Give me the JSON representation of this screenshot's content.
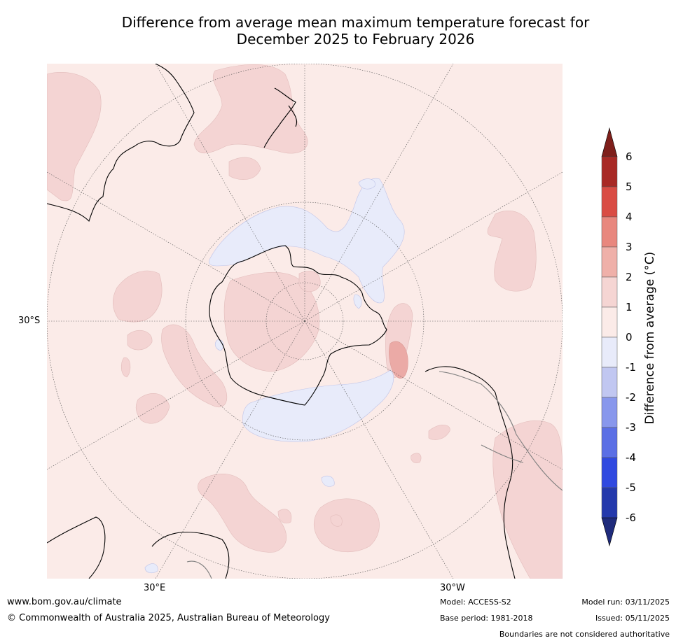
{
  "title": {
    "line1": "Difference from average mean maximum temperature forecast for",
    "line2": "December 2025 to February 2026"
  },
  "map": {
    "projection": "South polar stereographic",
    "lat_label": "30°S",
    "lon_labels": [
      "30°E",
      "30°W"
    ],
    "colors": {
      "background": "#fbebe8",
      "band_1_2": "#f4d4d3",
      "band_2_3": "#ebaaa6",
      "band_neg1_0": "#e8ebfa",
      "coast": "#000000",
      "border": "#7f7f7f",
      "graticule": "#555555"
    }
  },
  "legend": {
    "title": "Difference from average (°C)",
    "ticks": [
      "6",
      "5",
      "4",
      "3",
      "2",
      "1",
      "0",
      "-1",
      "-2",
      "-3",
      "-4",
      "-5",
      "-6"
    ],
    "extend_top_color": "#7e1f1b",
    "extend_bottom_color": "#1f2b7c",
    "colors": [
      "#a82925",
      "#d94c44",
      "#e8877e",
      "#efb0a9",
      "#f5d5d3",
      "#fbebe8",
      "#e8ebfa",
      "#c1c7f1",
      "#8897ec",
      "#5b6fe5",
      "#3049e0",
      "#2439ac"
    ]
  },
  "footer": {
    "website": "www.bom.gov.au/climate",
    "copyright": "© Commonwealth of Australia 2025, Australian Bureau of Meteorology",
    "model": "Model: ACCESS-S2",
    "base_period": "Base period: 1981-2018",
    "model_run": "Model run: 03/11/2025",
    "issued": "Issued: 05/11/2025",
    "disclaimer": "Boundaries are not considered authoritative"
  }
}
